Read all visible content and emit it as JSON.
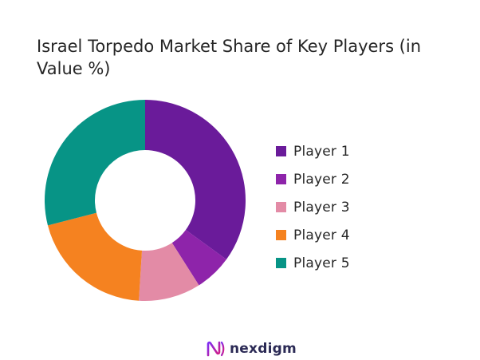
{
  "chart_data": {
    "type": "pie",
    "title": "Israel Torpedo Market Share of Key Players (in Value %)",
    "donut": true,
    "categories": [
      "Player 1",
      "Player 2",
      "Player 3",
      "Player 4",
      "Player 5"
    ],
    "values": [
      35,
      6,
      10,
      20,
      29
    ],
    "colors": [
      "#6a1b9a",
      "#8e24aa",
      "#e38ba6",
      "#f58220",
      "#079486"
    ],
    "legend_position": "right"
  },
  "brand": {
    "name": "nexdigm",
    "logo_icon": "nexdigm-logo-icon",
    "logo_colors": [
      "#7b2ff7",
      "#d61a7f"
    ]
  }
}
